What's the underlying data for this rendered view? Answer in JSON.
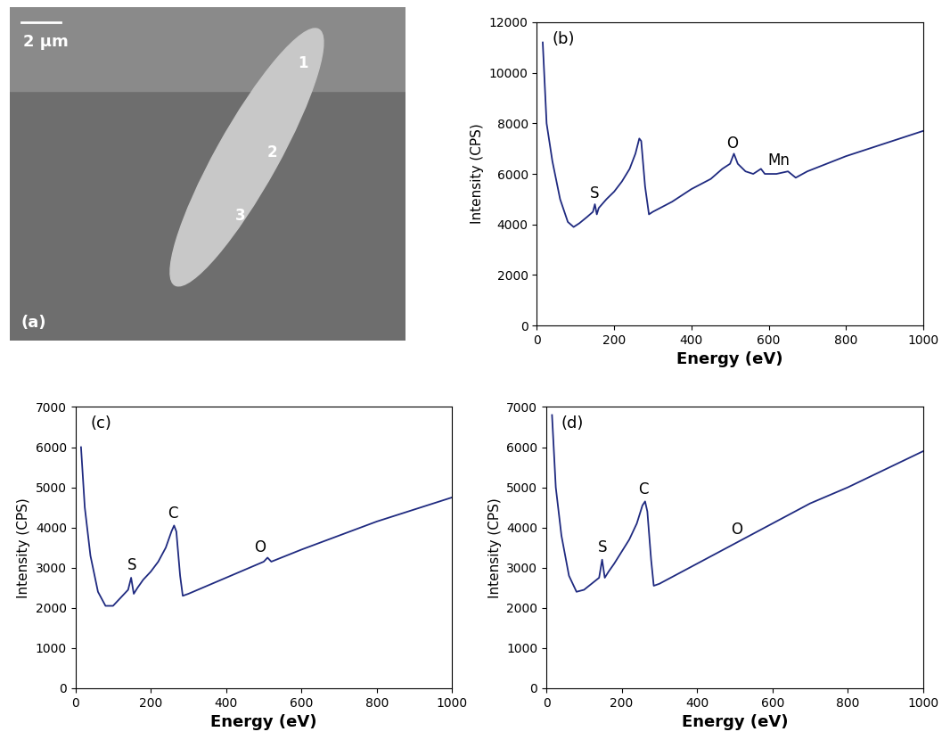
{
  "chart_data": [
    {
      "type": "image",
      "title": "(a)",
      "scale_bar": "2 µm",
      "annotations": [
        "1",
        "2",
        "3"
      ]
    },
    {
      "type": "line",
      "title": "(b)",
      "x_label": "Energy (eV)",
      "y_label": "Intensity (CPS)",
      "color": "#1f2a80",
      "xlim": [
        0,
        1000
      ],
      "xticks": [
        0,
        200,
        400,
        600,
        800,
        1000
      ],
      "ylim": [
        0,
        12000
      ],
      "yticks": [
        0,
        2000,
        4000,
        6000,
        8000,
        10000,
        12000
      ],
      "x": [
        15,
        25,
        40,
        60,
        80,
        95,
        110,
        130,
        145,
        150,
        155,
        160,
        180,
        200,
        220,
        240,
        255,
        265,
        270,
        280,
        290,
        300,
        350,
        400,
        450,
        480,
        500,
        510,
        520,
        540,
        560,
        580,
        590,
        620,
        650,
        670,
        700,
        800,
        900,
        1000
      ],
      "values": [
        11200,
        8000,
        6500,
        5000,
        4100,
        3900,
        4050,
        4300,
        4500,
        4800,
        4400,
        4650,
        5000,
        5300,
        5700,
        6200,
        6800,
        7400,
        7300,
        5500,
        4400,
        4500,
        4900,
        5400,
        5800,
        6200,
        6400,
        6800,
        6400,
        6100,
        6000,
        6200,
        6000,
        6000,
        6100,
        5850,
        6100,
        6700,
        7200,
        7700
      ],
      "annotations": [
        {
          "text": "S",
          "x": 150,
          "y": 4900
        },
        {
          "text": "O",
          "x": 505,
          "y": 6900
        },
        {
          "text": "Mn",
          "x": 625,
          "y": 6200
        }
      ]
    },
    {
      "type": "line",
      "title": "(c)",
      "x_label": "Energy (eV)",
      "y_label": "Intensity (CPS)",
      "color": "#1f2a80",
      "xlim": [
        0,
        1000
      ],
      "xticks": [
        0,
        200,
        400,
        600,
        800,
        1000
      ],
      "ylim": [
        0,
        7000
      ],
      "yticks": [
        0,
        1000,
        2000,
        3000,
        4000,
        5000,
        6000,
        7000
      ],
      "x": [
        15,
        25,
        40,
        60,
        80,
        100,
        120,
        140,
        148,
        155,
        165,
        180,
        200,
        220,
        240,
        255,
        262,
        268,
        278,
        285,
        300,
        350,
        400,
        450,
        500,
        510,
        520,
        600,
        700,
        800,
        900,
        1000
      ],
      "values": [
        6000,
        4500,
        3300,
        2400,
        2050,
        2050,
        2250,
        2450,
        2750,
        2350,
        2500,
        2700,
        2900,
        3150,
        3500,
        3900,
        4050,
        3900,
        2800,
        2300,
        2350,
        2550,
        2750,
        2950,
        3150,
        3250,
        3150,
        3450,
        3800,
        4150,
        4450,
        4750
      ],
      "annotations": [
        {
          "text": "S",
          "x": 150,
          "y": 2850
        },
        {
          "text": "C",
          "x": 258,
          "y": 4150
        },
        {
          "text": "O",
          "x": 490,
          "y": 3300
        }
      ]
    },
    {
      "type": "line",
      "title": "(d)",
      "x_label": "Energy (eV)",
      "y_label": "Intensity (CPS)",
      "color": "#1f2a80",
      "xlim": [
        0,
        1000
      ],
      "xticks": [
        0,
        200,
        400,
        600,
        800,
        1000
      ],
      "ylim": [
        0,
        7000
      ],
      "yticks": [
        0,
        1000,
        2000,
        3000,
        4000,
        5000,
        6000,
        7000
      ],
      "x": [
        15,
        25,
        40,
        60,
        80,
        100,
        120,
        140,
        148,
        155,
        165,
        180,
        200,
        220,
        240,
        255,
        262,
        268,
        278,
        285,
        300,
        350,
        400,
        450,
        500,
        510,
        600,
        700,
        800,
        900,
        1000
      ],
      "values": [
        6800,
        5000,
        3800,
        2800,
        2400,
        2450,
        2600,
        2750,
        3200,
        2750,
        2900,
        3100,
        3400,
        3700,
        4100,
        4550,
        4650,
        4400,
        3200,
        2550,
        2600,
        2850,
        3100,
        3350,
        3600,
        3650,
        4100,
        4600,
        5000,
        5450,
        5900
      ],
      "annotations": [
        {
          "text": "S",
          "x": 150,
          "y": 3300
        },
        {
          "text": "C",
          "x": 258,
          "y": 4750
        },
        {
          "text": "O",
          "x": 505,
          "y": 3750
        }
      ]
    }
  ]
}
